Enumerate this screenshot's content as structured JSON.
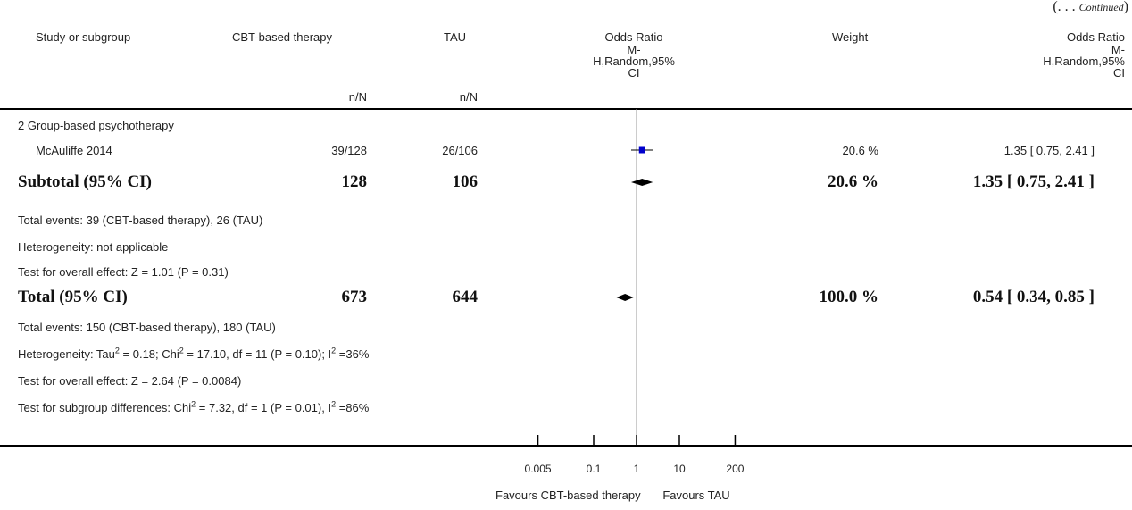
{
  "header": {
    "continued_prefix": "(. . . ",
    "continued_word": "Continued",
    "continued_suffix": ")",
    "col_study": "Study or subgroup",
    "col_cbt": "CBT-based therapy",
    "col_tau": "TAU",
    "col_or_1": "Odds Ratio",
    "col_or_2": "M-",
    "col_or_3": "H,Random,95%",
    "col_or_4": "CI",
    "col_weight": "Weight",
    "col_or2_1": "Odds Ratio",
    "col_or2_2": "M-",
    "col_or2_3": "H,Random,95%",
    "col_or2_4": "CI",
    "col_cbt_sub": "n/N",
    "col_tau_sub": "n/N"
  },
  "rows": {
    "group_label": "2 Group-based psychotherapy",
    "study_name": "McAuliffe 2014",
    "study_cbt": "39/128",
    "study_tau": "26/106",
    "study_weight": "20.6 %",
    "study_or": "1.35 [ 0.75, 2.41 ]",
    "subtotal_label": "Subtotal (95% CI)",
    "subtotal_cbt": "128",
    "subtotal_tau": "106",
    "subtotal_weight": "20.6 %",
    "subtotal_or": "1.35 [ 0.75, 2.41 ]",
    "sub_events": "Total events: 39 (CBT-based therapy), 26 (TAU)",
    "sub_het": "Heterogeneity: not applicable",
    "sub_test": "Test for overall effect: Z = 1.01 (P = 0.31)",
    "total_label": "Total (95% CI)",
    "total_cbt": "673",
    "total_tau": "644",
    "total_weight": "100.0 %",
    "total_or": "0.54 [ 0.34, 0.85 ]",
    "tot_events": "Total events: 150 (CBT-based therapy), 180 (TAU)",
    "tot_het_a": "Heterogeneity: Tau",
    "tot_het_sup1": "2",
    "tot_het_b": " = 0.18; Chi",
    "tot_het_sup2": "2",
    "tot_het_c": " = 17.10, df = 11 (P = 0.10); I",
    "tot_het_sup3": "2",
    "tot_het_d": " =36%",
    "tot_test": "Test for overall effect: Z = 2.64 (P = 0.0084)",
    "subgrp_a": "Test for subgroup differences: Chi",
    "subgrp_sup1": "2",
    "subgrp_b": " = 7.32, df = 1 (P = 0.01), I",
    "subgrp_sup2": "2",
    "subgrp_c": " =86%"
  },
  "chart_data": {
    "type": "forest",
    "scale": "log",
    "xlim": [
      0.005,
      200
    ],
    "ticks": [
      0.005,
      0.1,
      1,
      10,
      200
    ],
    "tick_labels": [
      "0.005",
      "0.1",
      "1",
      "10",
      "200"
    ],
    "null_value": 1,
    "favours_left": "Favours CBT-based therapy",
    "favours_right": "Favours TAU",
    "studies": [
      {
        "name": "McAuliffe 2014",
        "or": 1.35,
        "lower": 0.75,
        "upper": 2.41,
        "weight": 20.6
      }
    ],
    "diamonds": [
      {
        "name": "Subtotal (95% CI)",
        "or": 1.35,
        "lower": 0.75,
        "upper": 2.41
      },
      {
        "name": "Total (95% CI)",
        "or": 0.54,
        "lower": 0.34,
        "upper": 0.85
      }
    ],
    "colors": {
      "square": "#0000cc",
      "diamond": "#000000"
    }
  }
}
